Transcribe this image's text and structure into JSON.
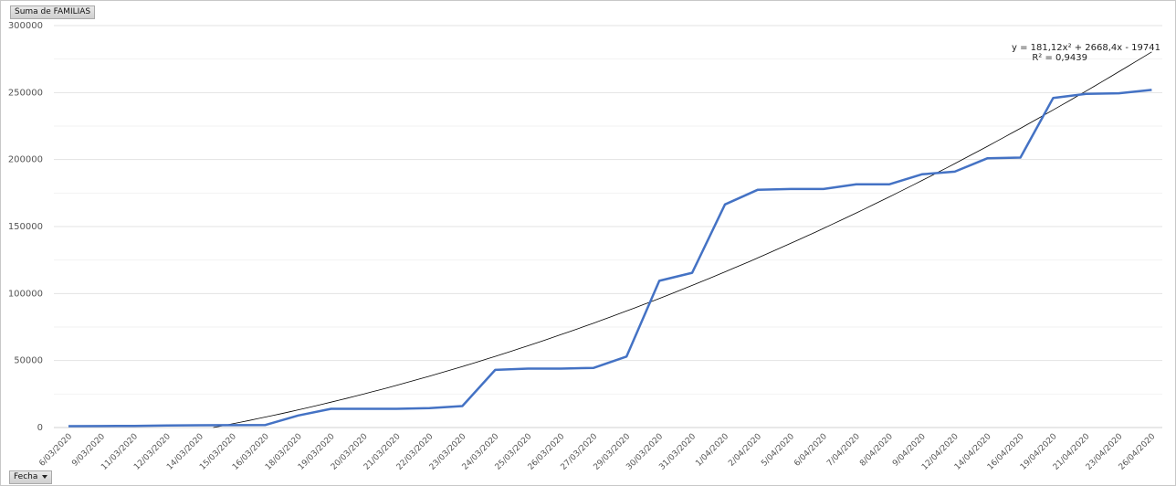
{
  "field_buttons": {
    "values": "Suma de FAMILIAS",
    "axis": "Fecha"
  },
  "chart_data": {
    "type": "line",
    "title": "",
    "xlabel": "",
    "ylabel": "",
    "ylim": [
      0,
      300000
    ],
    "yticks": [
      0,
      50000,
      100000,
      150000,
      200000,
      250000,
      300000
    ],
    "ytick_labels": [
      "0",
      "50000",
      "100000",
      "150000",
      "200000",
      "250000",
      "300000"
    ],
    "grid": true,
    "legend": "none",
    "categories": [
      "6/03/2020",
      "9/03/2020",
      "11/03/2020",
      "12/03/2020",
      "14/03/2020",
      "15/03/2020",
      "16/03/2020",
      "18/03/2020",
      "19/03/2020",
      "20/03/2020",
      "21/03/2020",
      "22/03/2020",
      "23/03/2020",
      "24/03/2020",
      "25/03/2020",
      "26/03/2020",
      "27/03/2020",
      "29/03/2020",
      "30/03/2020",
      "31/03/2020",
      "1/04/2020",
      "2/04/2020",
      "5/04/2020",
      "6/04/2020",
      "7/04/2020",
      "8/04/2020",
      "9/04/2020",
      "12/04/2020",
      "14/04/2020",
      "16/04/2020",
      "19/04/2020",
      "21/04/2020",
      "23/04/2020",
      "26/04/2020"
    ],
    "series": [
      {
        "values": [
          1000,
          1100,
          1200,
          1500,
          1700,
          1800,
          1900,
          9000,
          14000,
          14000,
          14000,
          14500,
          16000,
          43000,
          44000,
          44000,
          44500,
          53000,
          109500,
          115500,
          166500,
          177500,
          178000,
          178000,
          181500,
          181500,
          189000,
          191000,
          201000,
          201500,
          246000,
          249000,
          249500,
          252000
        ],
        "color": "#4472C4"
      }
    ],
    "trendline": {
      "type": "polynomial",
      "order": 2,
      "equation": "y = 181,12x² + 2668,4x - 19741",
      "r_squared": "R² = 0,9439",
      "coefficients": {
        "a": 181.12,
        "b": 2668.4,
        "c": -19741
      },
      "color": "#000000"
    }
  }
}
